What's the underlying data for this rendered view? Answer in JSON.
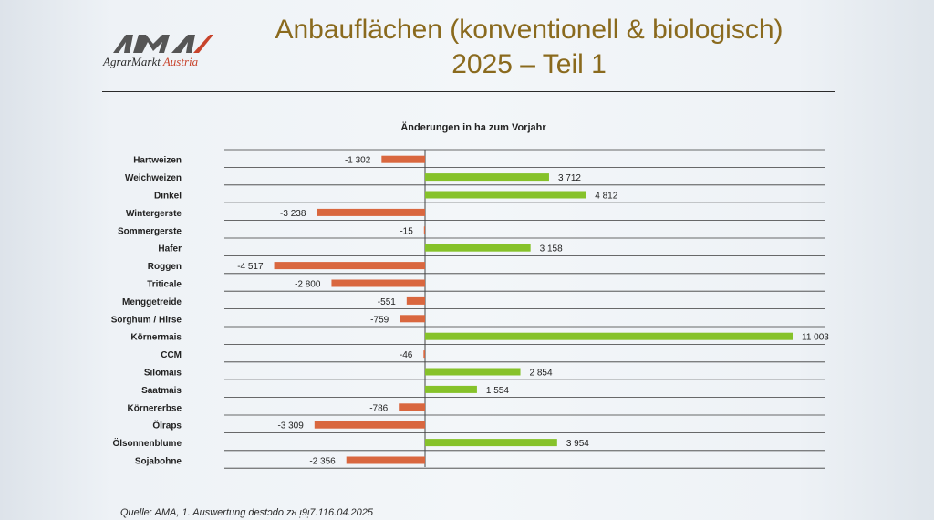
{
  "header": {
    "logo_brand": "AMA",
    "logo_text_main": "AgrarMarkt ",
    "logo_text_accent": "Austria",
    "title_line1": "Anbauflächen (konventionell & biologisch)",
    "title_line2": "2025 – Teil 1"
  },
  "colors": {
    "negative": "#d9673f",
    "positive": "#86c22a",
    "title": "#8a6a1e",
    "logo_red": "#c8432b",
    "logo_gray": "#555555"
  },
  "chart_data": {
    "type": "bar",
    "orientation": "horizontal",
    "title": "Änderungen in ha zum Vorjahr",
    "xlim": [
      -5500,
      11003
    ],
    "grid": true,
    "categories": [
      "Hartweizen",
      "Weichweizen",
      "Dinkel",
      "Wintergerste",
      "Sommergerste",
      "Hafer",
      "Roggen",
      "Triticale",
      "Menggetreide",
      "Sorghum / Hirse",
      "Körnermais",
      "CCM",
      "Silomais",
      "Saatmais",
      "Körnererbse",
      "Ölraps",
      "Ölsonnenblume",
      "Sojabohne"
    ],
    "values": [
      -1302,
      3712,
      4812,
      -3238,
      -15,
      3158,
      -4517,
      -2800,
      -551,
      -759,
      11003,
      -46,
      2854,
      1554,
      -786,
      -3309,
      3954,
      -2356
    ],
    "value_labels": [
      "-1 302",
      "3 712",
      "4 812",
      "-3 238",
      "-15",
      "3 158",
      "-4 517",
      "-2 800",
      "-551",
      "-759",
      "11 003",
      "-46",
      "2 854",
      "1 554",
      "-786",
      "-3 309",
      "3 954",
      "-2 356"
    ]
  },
  "footer": {
    "source": "Quelle: AMA, 1. Auswertung destɔdo zᴚ ᴉ9ᴉ7.116.04.2025"
  }
}
